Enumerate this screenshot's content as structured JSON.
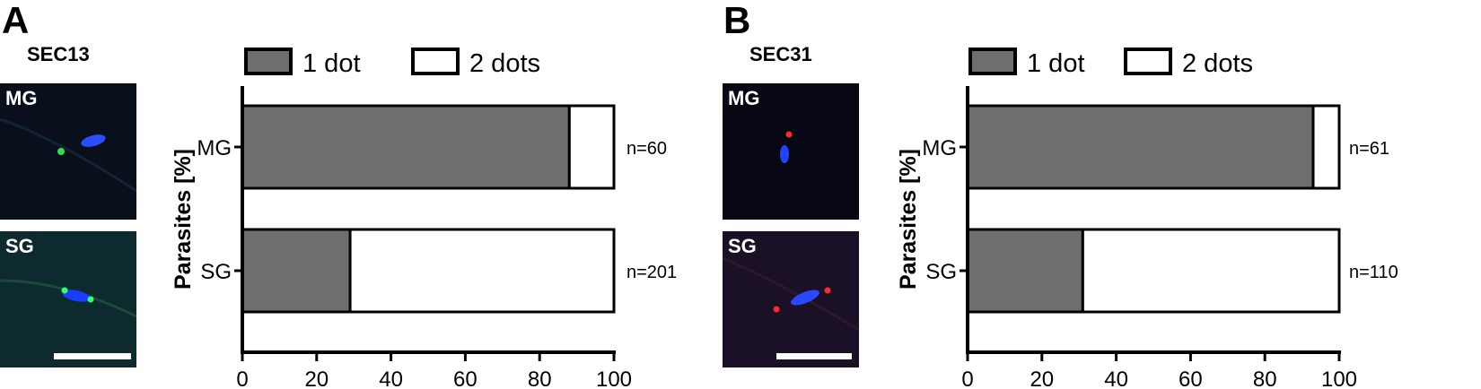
{
  "panels": [
    {
      "letter": "A",
      "protein": "SEC13",
      "images": [
        {
          "label": "MG",
          "bg": "#0a0f1c"
        },
        {
          "label": "SG",
          "bg": "#0d2a2e"
        }
      ]
    },
    {
      "letter": "B",
      "protein": "SEC31",
      "images": [
        {
          "label": "MG",
          "bg": "#070813"
        },
        {
          "label": "SG",
          "bg": "#1b1126"
        }
      ]
    }
  ],
  "colors": {
    "one_dot": "#6e6e6e",
    "two_dots": "#ffffff",
    "stroke": "#000000"
  },
  "chart_data": [
    {
      "type": "bar",
      "orientation": "horizontal",
      "stacked": true,
      "categories": [
        "MG",
        "SG"
      ],
      "series": [
        {
          "name": "1  dot",
          "values": [
            88,
            29
          ]
        },
        {
          "name": "2 dots",
          "values": [
            12,
            71
          ]
        }
      ],
      "annotations": [
        "n=60",
        "n=201"
      ],
      "ylabel": "Parasites  [%]",
      "xlim": [
        0,
        100
      ],
      "xticks": [
        "0",
        "20",
        "40",
        "60",
        "80",
        "100"
      ],
      "legend": "top"
    },
    {
      "type": "bar",
      "orientation": "horizontal",
      "stacked": true,
      "categories": [
        "MG",
        "SG"
      ],
      "series": [
        {
          "name": "1  dot",
          "values": [
            93,
            31
          ]
        },
        {
          "name": "2 dots",
          "values": [
            7,
            69
          ]
        }
      ],
      "annotations": [
        "n=61",
        "n=110"
      ],
      "ylabel": "Parasites  [%]",
      "xlim": [
        0,
        100
      ],
      "xticks": [
        "0",
        "20",
        "40",
        "60",
        "80",
        "100"
      ],
      "legend": "top"
    }
  ]
}
